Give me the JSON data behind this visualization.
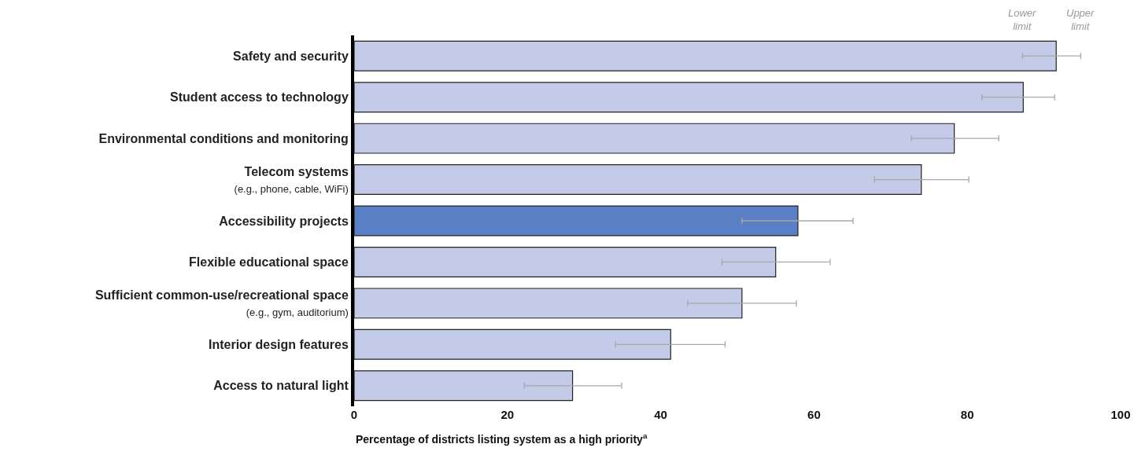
{
  "chart_data": {
    "type": "bar",
    "orientation": "horizontal",
    "xlabel": "Percentage of districts listing system as a high priority$^{a}$",
    "categories": [
      "Safety and security",
      "Student access to technology",
      "Environmental conditions and monitoring",
      "Telecom systems\n(e.g., phone, cable, WiFi)",
      "Accessibility projects",
      "Flexible educational space",
      "Sufficient common-use/recreational space\n(e.g., gym, auditorium)",
      "Interior design features",
      "Access to natural light"
    ],
    "values": [
      91.6,
      87.3,
      78.3,
      74.0,
      57.9,
      55.0,
      50.6,
      41.3,
      28.5
    ],
    "colors": [
      "#c3cbe8",
      "#c3cbe8",
      "#c3cbe8",
      "#c3cbe8",
      "#5a7fc4",
      "#c3cbe8",
      "#c3cbe8",
      "#c3cbe8",
      "#c3cbe8"
    ],
    "errors": [
      [
        87.2,
        94.8
      ],
      [
        81.9,
        91.4
      ],
      [
        72.7,
        84.1
      ],
      [
        67.9,
        80.2
      ],
      [
        50.6,
        65.1
      ],
      [
        48.0,
        62.1
      ],
      [
        43.5,
        57.7
      ],
      [
        34.1,
        48.4
      ],
      [
        22.2,
        34.9
      ]
    ],
    "xlim": [
      0,
      100
    ],
    "xticks": [
      0,
      20,
      40,
      60,
      80,
      100
    ],
    "annotations": [
      {
        "text": "Lower\nlimit",
        "x": 87.2,
        "y": "Safety and security"
      },
      {
        "text": "Upper\nlimit",
        "x": 94.8,
        "y": "Safety and security"
      }
    ]
  }
}
